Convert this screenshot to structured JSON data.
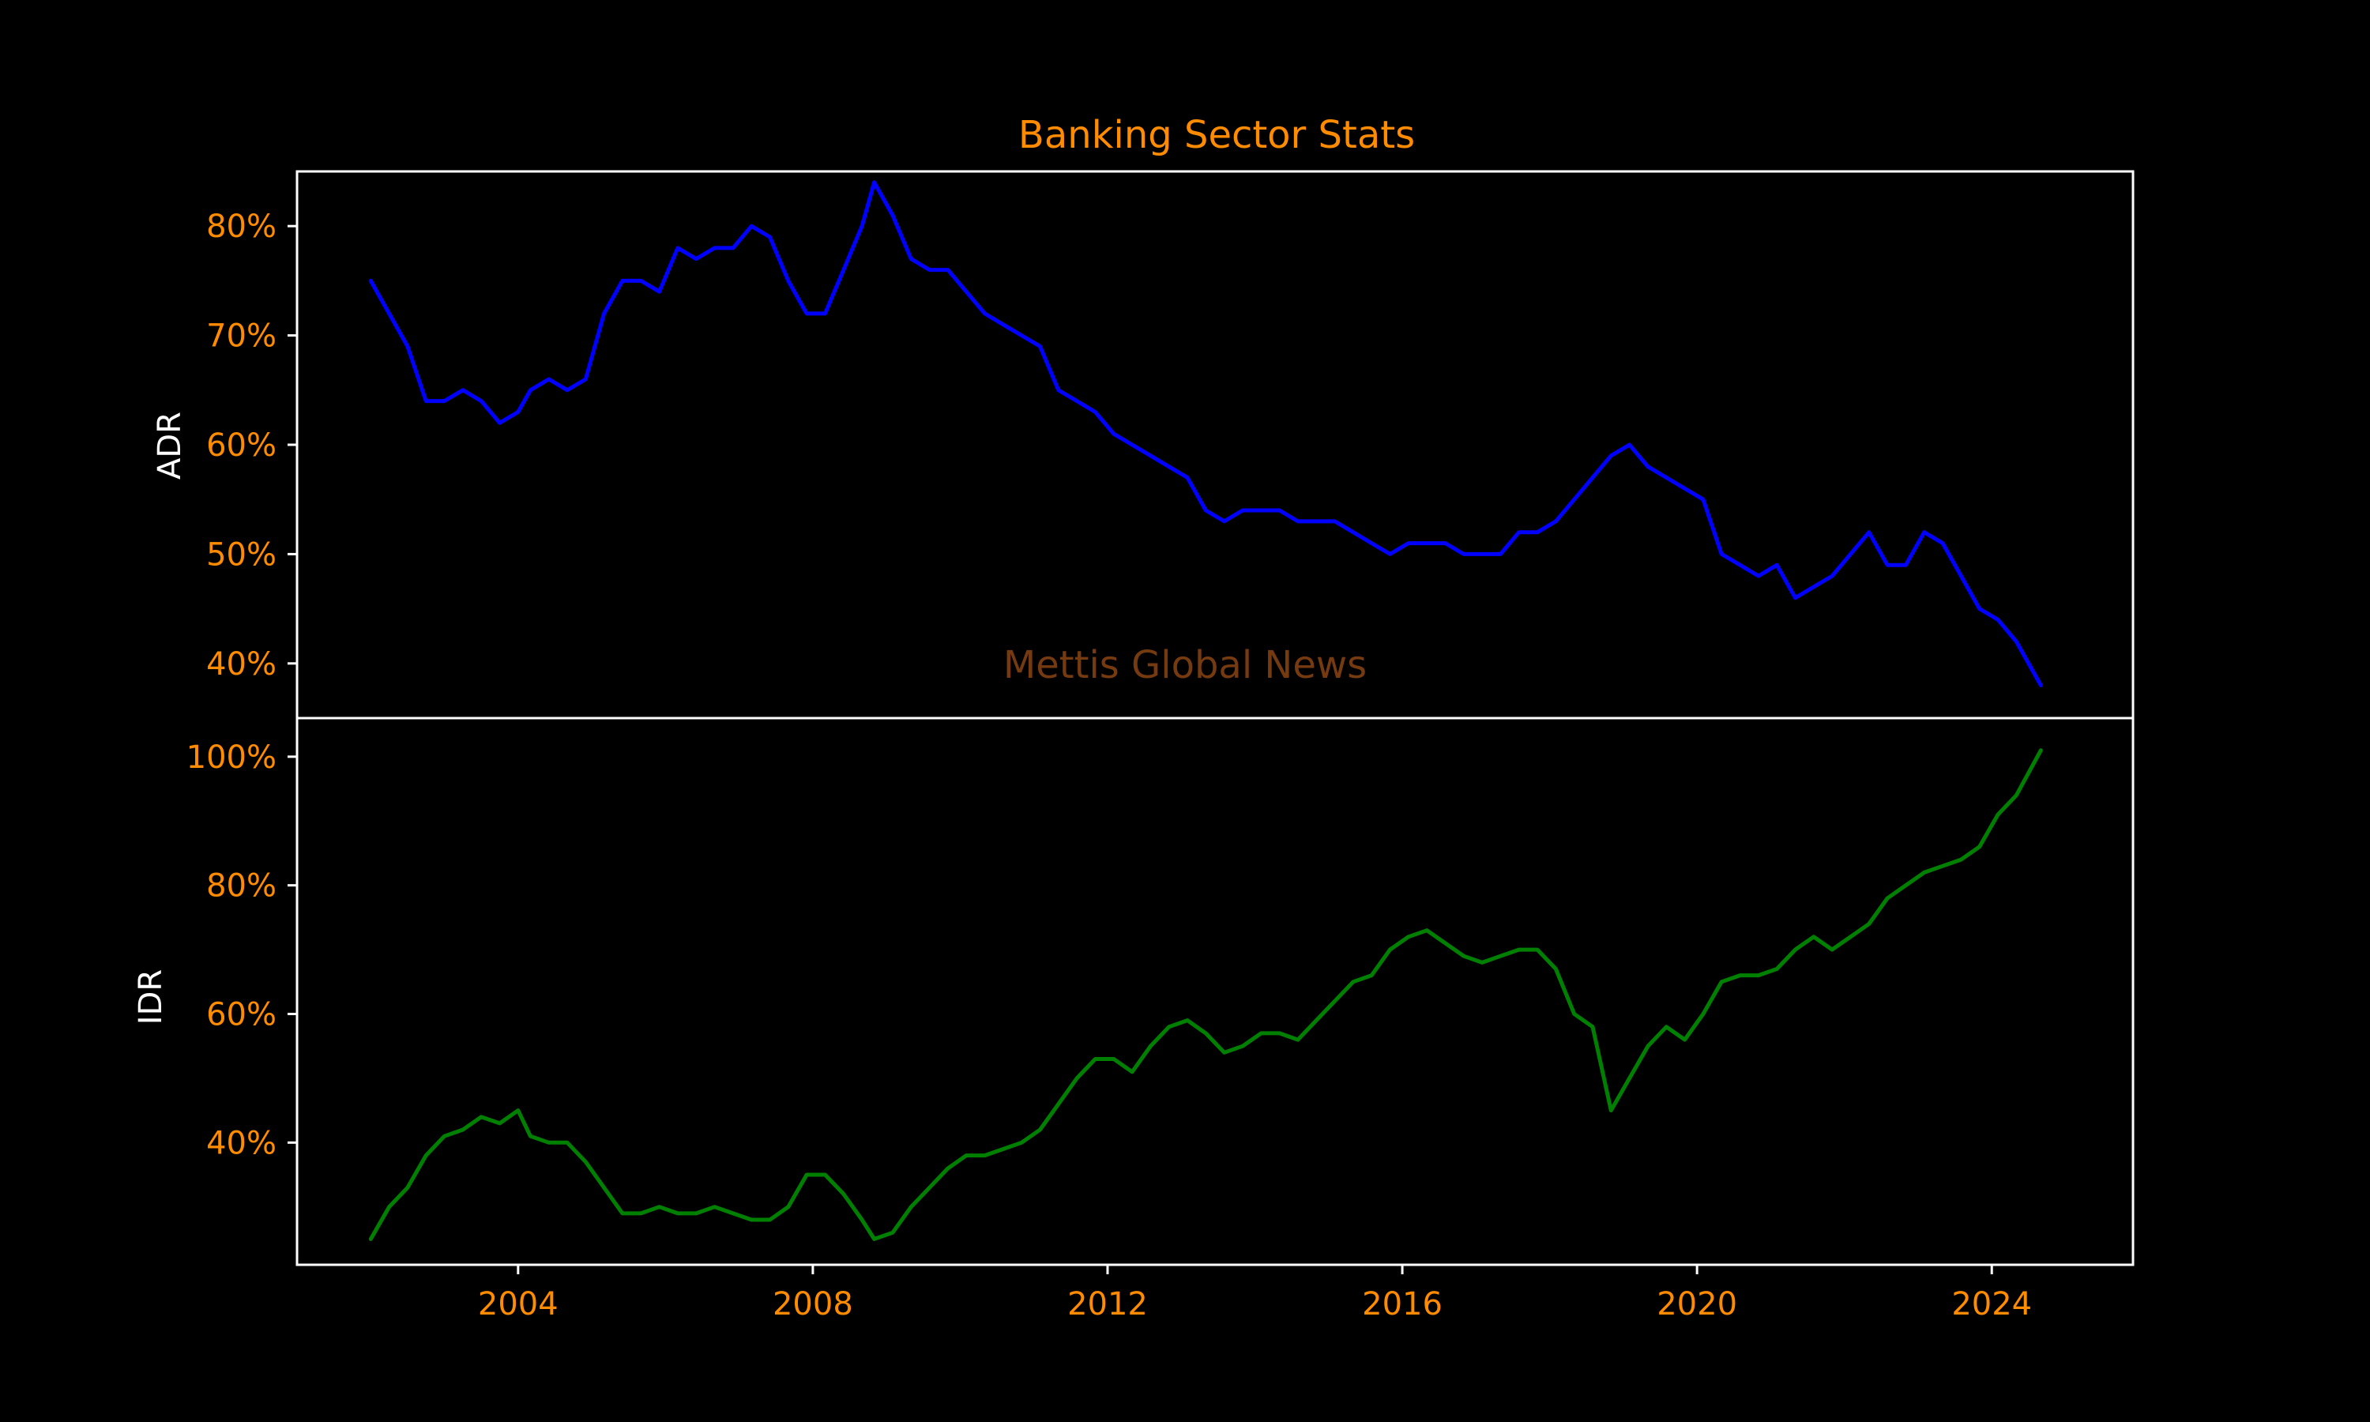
{
  "colors": {
    "background": "#000000",
    "accent": "#ff8c00",
    "axis": "#ffffff",
    "watermark": "#8b4513",
    "adr_line": "#0000ff",
    "idr_line": "#008000"
  },
  "chart_data": {
    "type": "line",
    "title": "Banking Sector Stats",
    "watermark": "Mettis Global News",
    "grid": false,
    "x": {
      "type": "date",
      "ticks": [
        "2004",
        "2008",
        "2012",
        "2016",
        "2020",
        "2024"
      ],
      "range": [
        "2001-01",
        "2025-12"
      ]
    },
    "panels": [
      {
        "ylabel": "ADR",
        "yticks": [
          "40%",
          "50%",
          "60%",
          "70%",
          "80%"
        ],
        "ylim": [
          35,
          85
        ],
        "series": [
          {
            "color": "#0000ff",
            "points": [
              [
                "2002-01",
                75
              ],
              [
                "2002-04",
                72
              ],
              [
                "2002-07",
                69
              ],
              [
                "2002-10",
                64
              ],
              [
                "2003-01",
                64
              ],
              [
                "2003-04",
                65
              ],
              [
                "2003-07",
                64
              ],
              [
                "2003-10",
                62
              ],
              [
                "2004-01",
                63
              ],
              [
                "2004-03",
                65
              ],
              [
                "2004-06",
                66
              ],
              [
                "2004-09",
                65
              ],
              [
                "2004-12",
                66
              ],
              [
                "2005-03",
                72
              ],
              [
                "2005-06",
                75
              ],
              [
                "2005-09",
                75
              ],
              [
                "2005-12",
                74
              ],
              [
                "2006-03",
                78
              ],
              [
                "2006-06",
                77
              ],
              [
                "2006-09",
                78
              ],
              [
                "2006-12",
                78
              ],
              [
                "2007-03",
                80
              ],
              [
                "2007-06",
                79
              ],
              [
                "2007-09",
                75
              ],
              [
                "2007-12",
                72
              ],
              [
                "2008-03",
                72
              ],
              [
                "2008-06",
                76
              ],
              [
                "2008-09",
                80
              ],
              [
                "2008-11",
                84
              ],
              [
                "2009-02",
                81
              ],
              [
                "2009-05",
                77
              ],
              [
                "2009-08",
                76
              ],
              [
                "2009-11",
                76
              ],
              [
                "2010-02",
                74
              ],
              [
                "2010-05",
                72
              ],
              [
                "2010-08",
                71
              ],
              [
                "2010-11",
                70
              ],
              [
                "2011-02",
                69
              ],
              [
                "2011-05",
                65
              ],
              [
                "2011-08",
                64
              ],
              [
                "2011-11",
                63
              ],
              [
                "2012-02",
                61
              ],
              [
                "2012-05",
                60
              ],
              [
                "2012-08",
                59
              ],
              [
                "2012-11",
                58
              ],
              [
                "2013-02",
                57
              ],
              [
                "2013-05",
                54
              ],
              [
                "2013-08",
                53
              ],
              [
                "2013-11",
                54
              ],
              [
                "2014-02",
                54
              ],
              [
                "2014-05",
                54
              ],
              [
                "2014-08",
                53
              ],
              [
                "2014-11",
                53
              ],
              [
                "2015-02",
                53
              ],
              [
                "2015-05",
                52
              ],
              [
                "2015-08",
                51
              ],
              [
                "2015-11",
                50
              ],
              [
                "2016-02",
                51
              ],
              [
                "2016-05",
                51
              ],
              [
                "2016-08",
                51
              ],
              [
                "2016-11",
                50
              ],
              [
                "2017-02",
                50
              ],
              [
                "2017-05",
                50
              ],
              [
                "2017-08",
                52
              ],
              [
                "2017-11",
                52
              ],
              [
                "2018-02",
                53
              ],
              [
                "2018-05",
                55
              ],
              [
                "2018-08",
                57
              ],
              [
                "2018-11",
                59
              ],
              [
                "2019-02",
                60
              ],
              [
                "2019-05",
                58
              ],
              [
                "2019-08",
                57
              ],
              [
                "2019-11",
                56
              ],
              [
                "2020-02",
                55
              ],
              [
                "2020-05",
                50
              ],
              [
                "2020-08",
                49
              ],
              [
                "2020-11",
                48
              ],
              [
                "2021-02",
                49
              ],
              [
                "2021-05",
                46
              ],
              [
                "2021-08",
                47
              ],
              [
                "2021-11",
                48
              ],
              [
                "2022-02",
                50
              ],
              [
                "2022-05",
                52
              ],
              [
                "2022-08",
                49
              ],
              [
                "2022-11",
                49
              ],
              [
                "2023-02",
                52
              ],
              [
                "2023-05",
                51
              ],
              [
                "2023-08",
                48
              ],
              [
                "2023-11",
                45
              ],
              [
                "2024-02",
                44
              ],
              [
                "2024-05",
                42
              ],
              [
                "2024-09",
                38
              ]
            ]
          }
        ]
      },
      {
        "ylabel": "IDR",
        "yticks": [
          "40%",
          "60%",
          "80%",
          "100%"
        ],
        "ylim": [
          21,
          106
        ],
        "series": [
          {
            "color": "#008000",
            "points": [
              [
                "2002-01",
                25
              ],
              [
                "2002-04",
                30
              ],
              [
                "2002-07",
                33
              ],
              [
                "2002-10",
                38
              ],
              [
                "2003-01",
                41
              ],
              [
                "2003-04",
                42
              ],
              [
                "2003-07",
                44
              ],
              [
                "2003-10",
                43
              ],
              [
                "2004-01",
                45
              ],
              [
                "2004-03",
                41
              ],
              [
                "2004-06",
                40
              ],
              [
                "2004-09",
                40
              ],
              [
                "2004-12",
                37
              ],
              [
                "2005-03",
                33
              ],
              [
                "2005-06",
                29
              ],
              [
                "2005-09",
                29
              ],
              [
                "2005-12",
                30
              ],
              [
                "2006-03",
                29
              ],
              [
                "2006-06",
                29
              ],
              [
                "2006-09",
                30
              ],
              [
                "2006-12",
                29
              ],
              [
                "2007-03",
                28
              ],
              [
                "2007-06",
                28
              ],
              [
                "2007-09",
                30
              ],
              [
                "2007-12",
                35
              ],
              [
                "2008-03",
                35
              ],
              [
                "2008-06",
                32
              ],
              [
                "2008-09",
                28
              ],
              [
                "2008-11",
                25
              ],
              [
                "2009-02",
                26
              ],
              [
                "2009-05",
                30
              ],
              [
                "2009-08",
                33
              ],
              [
                "2009-11",
                36
              ],
              [
                "2010-02",
                38
              ],
              [
                "2010-05",
                38
              ],
              [
                "2010-08",
                39
              ],
              [
                "2010-11",
                40
              ],
              [
                "2011-02",
                42
              ],
              [
                "2011-05",
                46
              ],
              [
                "2011-08",
                50
              ],
              [
                "2011-11",
                53
              ],
              [
                "2012-02",
                53
              ],
              [
                "2012-05",
                51
              ],
              [
                "2012-08",
                55
              ],
              [
                "2012-11",
                58
              ],
              [
                "2013-02",
                59
              ],
              [
                "2013-05",
                57
              ],
              [
                "2013-08",
                54
              ],
              [
                "2013-11",
                55
              ],
              [
                "2014-02",
                57
              ],
              [
                "2014-05",
                57
              ],
              [
                "2014-08",
                56
              ],
              [
                "2014-11",
                59
              ],
              [
                "2015-02",
                62
              ],
              [
                "2015-05",
                65
              ],
              [
                "2015-08",
                66
              ],
              [
                "2015-11",
                70
              ],
              [
                "2016-02",
                72
              ],
              [
                "2016-05",
                73
              ],
              [
                "2016-08",
                71
              ],
              [
                "2016-11",
                69
              ],
              [
                "2017-02",
                68
              ],
              [
                "2017-05",
                69
              ],
              [
                "2017-08",
                70
              ],
              [
                "2017-11",
                70
              ],
              [
                "2018-02",
                67
              ],
              [
                "2018-05",
                60
              ],
              [
                "2018-08",
                58
              ],
              [
                "2018-11",
                45
              ],
              [
                "2019-02",
                50
              ],
              [
                "2019-05",
                55
              ],
              [
                "2019-08",
                58
              ],
              [
                "2019-11",
                56
              ],
              [
                "2020-02",
                60
              ],
              [
                "2020-05",
                65
              ],
              [
                "2020-08",
                66
              ],
              [
                "2020-11",
                66
              ],
              [
                "2021-02",
                67
              ],
              [
                "2021-05",
                70
              ],
              [
                "2021-08",
                72
              ],
              [
                "2021-11",
                70
              ],
              [
                "2022-02",
                72
              ],
              [
                "2022-05",
                74
              ],
              [
                "2022-08",
                78
              ],
              [
                "2022-11",
                80
              ],
              [
                "2023-02",
                82
              ],
              [
                "2023-05",
                83
              ],
              [
                "2023-08",
                84
              ],
              [
                "2023-11",
                86
              ],
              [
                "2024-02",
                91
              ],
              [
                "2024-05",
                94
              ],
              [
                "2024-09",
                101
              ]
            ]
          }
        ]
      }
    ]
  }
}
